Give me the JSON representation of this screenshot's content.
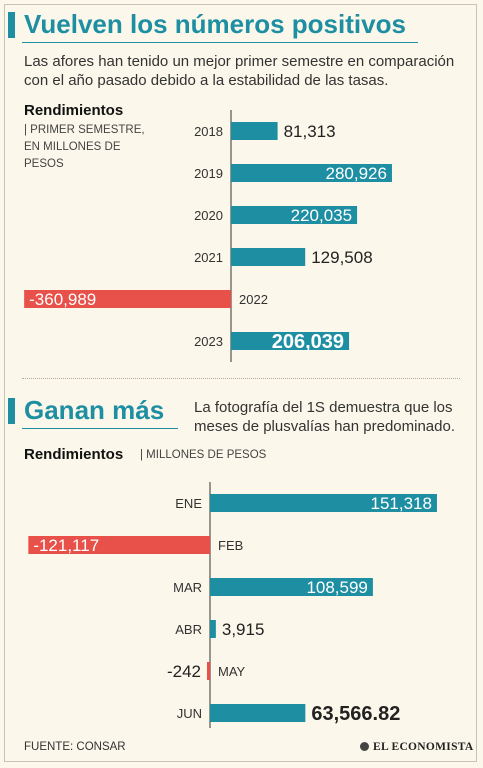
{
  "section1": {
    "title": "Vuelven los números positivos",
    "intro_line1": "Las afores han tenido un mejor primer semestre en comparación",
    "intro_line2": "con el año pasado debido a la estabilidad de las tasas.",
    "subtitle": "Rendimientos",
    "note_line1": "| PRIMER SEMESTRE,",
    "note_line2": "EN MILLONES DE",
    "note_line3": "PESOS"
  },
  "section2": {
    "title": "Ganan más",
    "intro_line1": "La fotografía del 1S demuestra que los",
    "intro_line2": "meses de plusvalías han predominado.",
    "subtitle": "Rendimientos",
    "note": "| MILLONES DE PESOS"
  },
  "footer": {
    "source": "FUENTE: CONSAR",
    "logo": "EL ECONOMISTA"
  },
  "colors": {
    "positive": "#1e8fa3",
    "negative": "#e8504a",
    "background": "#fbf7ea"
  },
  "chart_data": [
    {
      "type": "bar",
      "orientation": "horizontal",
      "categories": [
        "2018",
        "2019",
        "2020",
        "2021",
        "2022",
        "2023"
      ],
      "values": [
        81313,
        280926,
        220035,
        129508,
        -360989,
        206039
      ],
      "labels": [
        "81,313",
        "280,926",
        "220,035",
        "129,508",
        "-360,989",
        "206,039"
      ],
      "highlight": "2023"
    },
    {
      "type": "bar",
      "orientation": "horizontal",
      "categories": [
        "ENE",
        "FEB",
        "MAR",
        "ABR",
        "MAY",
        "JUN"
      ],
      "values": [
        151318,
        -121117,
        108599,
        3915,
        -242,
        63566.82
      ],
      "labels": [
        "151,318",
        "-121,117",
        "108,599",
        "3,915",
        "-242",
        "63,566.82"
      ],
      "highlight": "JUN"
    }
  ]
}
